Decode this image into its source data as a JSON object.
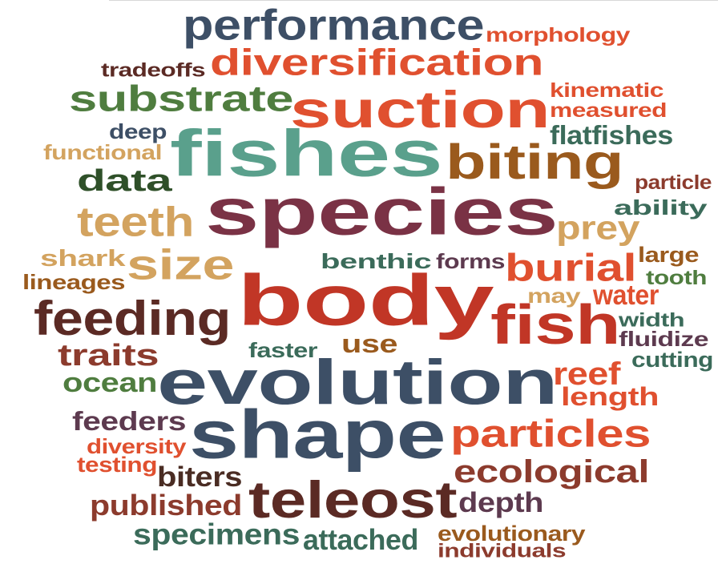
{
  "palette": {
    "slate": "#3d4f66",
    "orange_red": "#e0502f",
    "red": "#c13626",
    "plum": "#7a3245",
    "teal": "#5aa08c",
    "green": "#4f7d3f",
    "dark_green": "#2f5029",
    "brown": "#9a5a1d",
    "tan": "#d3a35f",
    "maroon": "#5b2a24",
    "rust": "#8c3b2d",
    "sea_green": "#3b6b5a",
    "dark_brown": "#4a2c23",
    "purple_brown": "#5d3a4f"
  },
  "words": [
    {
      "text": "performance",
      "color": "#3d4f66"
    },
    {
      "text": "morphology",
      "color": "#e0502f"
    },
    {
      "text": "diversification",
      "color": "#e0502f"
    },
    {
      "text": "tradeoffs",
      "color": "#5b2a24"
    },
    {
      "text": "substrate",
      "color": "#4f7d3f"
    },
    {
      "text": "suction",
      "color": "#e0502f"
    },
    {
      "text": "kinematic",
      "color": "#e0502f"
    },
    {
      "text": "measured",
      "color": "#e0502f"
    },
    {
      "text": "deep",
      "color": "#3d4f66"
    },
    {
      "text": "fishes",
      "color": "#5aa08c"
    },
    {
      "text": "flatfishes",
      "color": "#3b6b5a"
    },
    {
      "text": "functional",
      "color": "#d3a35f"
    },
    {
      "text": "biting",
      "color": "#9a5a1d"
    },
    {
      "text": "data",
      "color": "#2f5029"
    },
    {
      "text": "particle",
      "color": "#8c3b2d"
    },
    {
      "text": "species",
      "color": "#7a3245"
    },
    {
      "text": "ability",
      "color": "#3b6b5a"
    },
    {
      "text": "teeth",
      "color": "#d3a35f"
    },
    {
      "text": "prey",
      "color": "#d3a35f"
    },
    {
      "text": "large",
      "color": "#9a5a1d"
    },
    {
      "text": "shark",
      "color": "#d3a35f"
    },
    {
      "text": "size",
      "color": "#d3a35f"
    },
    {
      "text": "benthic",
      "color": "#3b6b5a"
    },
    {
      "text": "forms",
      "color": "#5d3a4f"
    },
    {
      "text": "burial",
      "color": "#e0502f"
    },
    {
      "text": "lineages",
      "color": "#9a5a1d"
    },
    {
      "text": "tooth",
      "color": "#4f7d3f"
    },
    {
      "text": "body",
      "color": "#c13626"
    },
    {
      "text": "may",
      "color": "#d3a35f"
    },
    {
      "text": "water",
      "color": "#e0502f"
    },
    {
      "text": "feeding",
      "color": "#5b2a24"
    },
    {
      "text": "fish",
      "color": "#c13626"
    },
    {
      "text": "width",
      "color": "#3b6b5a"
    },
    {
      "text": "fluidize",
      "color": "#5d3a4f"
    },
    {
      "text": "traits",
      "color": "#8c3b2d"
    },
    {
      "text": "faster",
      "color": "#3b6b5a"
    },
    {
      "text": "use",
      "color": "#9a5a1d"
    },
    {
      "text": "cutting",
      "color": "#3b6b5a"
    },
    {
      "text": "evolution",
      "color": "#3d4f66"
    },
    {
      "text": "reef",
      "color": "#e0502f"
    },
    {
      "text": "ocean",
      "color": "#4f7d3f"
    },
    {
      "text": "length",
      "color": "#e0502f"
    },
    {
      "text": "feeders",
      "color": "#5d3a4f"
    },
    {
      "text": "shape",
      "color": "#3d4f66"
    },
    {
      "text": "particles",
      "color": "#e0502f"
    },
    {
      "text": "diversity",
      "color": "#e0502f"
    },
    {
      "text": "testing",
      "color": "#e0502f"
    },
    {
      "text": "ecological",
      "color": "#8c3b2d"
    },
    {
      "text": "biters",
      "color": "#4a2c23"
    },
    {
      "text": "published",
      "color": "#8c3b2d"
    },
    {
      "text": "teleost",
      "color": "#5b2a24"
    },
    {
      "text": "depth",
      "color": "#5d3a4f"
    },
    {
      "text": "specimens",
      "color": "#3b6b5a"
    },
    {
      "text": "attached",
      "color": "#3b6b5a"
    },
    {
      "text": "evolutionary",
      "color": "#9a5a1d"
    },
    {
      "text": "individuals",
      "color": "#8c3b2d"
    }
  ]
}
